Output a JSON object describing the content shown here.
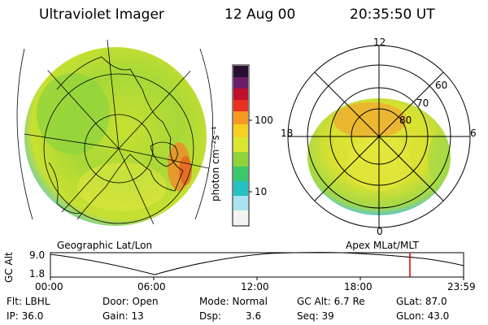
{
  "header": {
    "instrument": "Ultraviolet Imager",
    "date": "12 Aug 00",
    "time": "20:35:50 UT"
  },
  "colorbar": {
    "unit_label": "photon cm⁻²s⁻¹",
    "ticks": [
      "100",
      "10"
    ],
    "colors": [
      "#2a0f30",
      "#6a1e6a",
      "#c0102a",
      "#e83020",
      "#f59a20",
      "#f5d020",
      "#d8e830",
      "#8fd43a",
      "#3cc86a",
      "#25c0c0",
      "#a8e4f0",
      "#f4f4f4"
    ]
  },
  "left_map": {
    "label": "Geographic Lat/Lon"
  },
  "right_map": {
    "label": "Apex  MLat/MLT",
    "mlt_labels": {
      "top": "12",
      "left": "18",
      "right": "6",
      "bottom": "0"
    },
    "lat_labels": [
      "60",
      "70",
      "80"
    ]
  },
  "altitude_plot": {
    "ylabel": "GC Alt",
    "yticks": [
      "9.0",
      "1.8"
    ],
    "xticks": [
      "00:00",
      "06:00",
      "12:00",
      "18:00",
      "23:59"
    ],
    "current_time_fraction": 0.871
  },
  "info": {
    "row1": {
      "flt": "Flt: LBHL",
      "door": "Door: Open",
      "mode": "Mode: Normal",
      "gc_alt": "GC Alt: 6.7 Re",
      "glat": "GLat:  87.0"
    },
    "row2": {
      "ip": "IP: 36.0",
      "gain": "Gain: 13",
      "dsp_label": "Dsp:",
      "dsp_value": "3.6",
      "seq": "Seq: 39",
      "glon": "GLon:  43.0"
    }
  }
}
